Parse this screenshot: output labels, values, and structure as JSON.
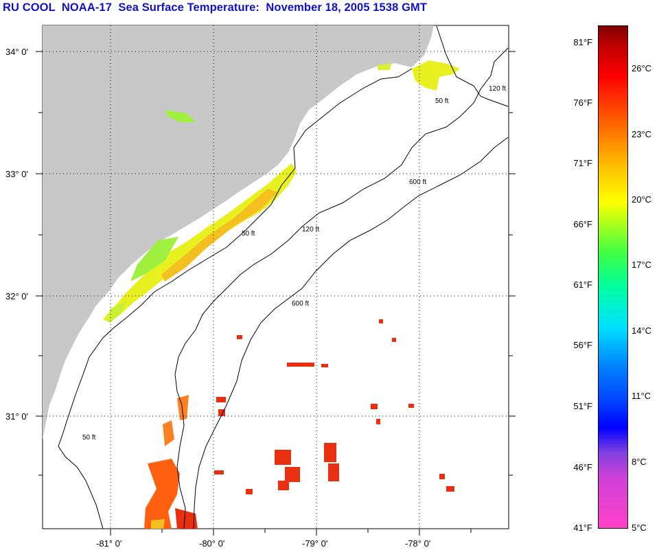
{
  "title": "RU COOL  NOAA-17  Sea Surface Temperature:  November 18, 2005 1538 GMT",
  "map": {
    "lat_labels": [
      "34° 0'",
      "33° 0'",
      "32° 0'",
      "31° 0'"
    ],
    "lon_labels": [
      "-81° 0'",
      "-80° 0'",
      "-79° 0'",
      "-78° 0'"
    ],
    "contour_labels": [
      "50 ft",
      "120 ft",
      "600 ft"
    ],
    "colors": {
      "land": "#c8c8c8",
      "ocean": "#ffffff",
      "grid": "#000000"
    }
  },
  "colorbar": {
    "fahrenheit": [
      "81°F",
      "76°F",
      "71°F",
      "66°F",
      "61°F",
      "56°F",
      "51°F",
      "46°F",
      "41°F"
    ],
    "celsius": [
      "26°C",
      "23°C",
      "20°C",
      "17°C",
      "14°C",
      "11°C",
      "8°C",
      "5°C"
    ],
    "colors": [
      "#ff40c8",
      "#8040e0",
      "#0000ff",
      "#00e0ff",
      "#40ff40",
      "#ffff00",
      "#ff8000",
      "#ff0000",
      "#800000"
    ]
  }
}
